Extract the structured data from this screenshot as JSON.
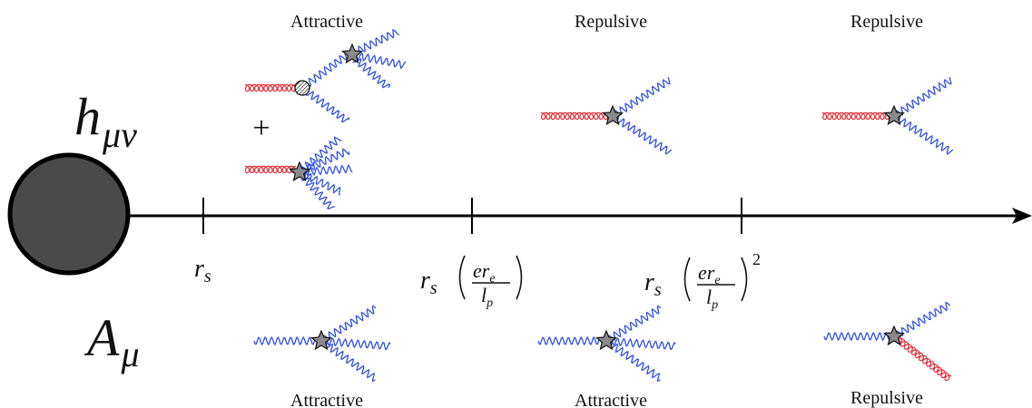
{
  "field_labels": {
    "graviton": {
      "base": "h",
      "sub": "μν"
    },
    "photon": {
      "base": "A",
      "sub": "μ"
    }
  },
  "axis": {
    "ticks": [
      {
        "base": "r",
        "sub": "s"
      },
      {
        "base": "r",
        "sub": "s",
        "num": "er",
        "num_sub": "e",
        "den": "l",
        "den_sub": "p"
      },
      {
        "base": "r",
        "sub": "s",
        "num": "er",
        "num_sub": "e",
        "den": "l",
        "den_sub": "p",
        "power": "2"
      }
    ]
  },
  "regimes": {
    "top": [
      "Attractive",
      "Repulsive",
      "Repulsive"
    ],
    "bottom": [
      "Attractive",
      "Attractive",
      "Repulsive"
    ]
  },
  "plus_sign": "+",
  "colors": {
    "graviton_line": "#e0303a",
    "photon_line": "#2f4fe0",
    "vertex_star": "#8a8a8a",
    "black_hole_fill": "#4a4a4a",
    "axis": "#000000"
  }
}
